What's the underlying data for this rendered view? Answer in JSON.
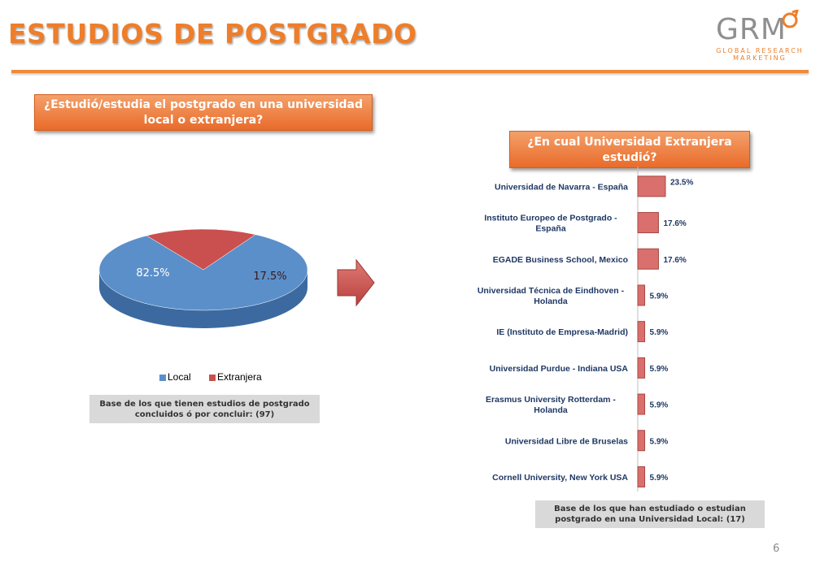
{
  "page": {
    "title": "ESTUDIOS DE POSTGRADO",
    "page_number": "6",
    "logo": {
      "mark": "GRM",
      "line1": "GLOBAL RESEARCH",
      "line2": "MARKETING"
    }
  },
  "left_panel": {
    "question": "¿Estudió/estudia el postgrado en una universidad local o extranjera?",
    "base_note": "Base de los que tienen estudios de postgrado concluidos ó por concluir: (97)"
  },
  "right_panel": {
    "question": "¿En cual Universidad Extranjera estudió?",
    "base_note": "Base de los que han estudiado o estudian postgrado en una Universidad Local: (17)"
  },
  "colors": {
    "accent": "#ee7e2a",
    "local": "#5b8fc9",
    "extranjera": "#c9504e",
    "bar": "#d9706d"
  },
  "chart_data": [
    {
      "type": "pie",
      "categories": [
        "Local",
        "Extranjera"
      ],
      "values": [
        82.5,
        17.5
      ],
      "labels": [
        "82.5%",
        "17.5%"
      ],
      "legend": "bottom",
      "style": "3d"
    },
    {
      "type": "bar",
      "orientation": "horizontal",
      "categories": [
        "Universidad de Navarra - España",
        "Instituto Europeo de Postgrado - España",
        "EGADE Business School, Mexico",
        "Universidad Técnica de Eindhoven - Holanda",
        "IE (Instituto de Empresa-Madrid)",
        "Universidad Purdue - Indiana USA",
        "Erasmus University Rotterdam - Holanda",
        "Universidad Libre de Bruselas",
        "Cornell University, New York USA"
      ],
      "values": [
        23.5,
        17.6,
        17.6,
        5.9,
        5.9,
        5.9,
        5.9,
        5.9,
        5.9
      ],
      "labels": [
        "23.5%",
        "17.6%",
        "17.6%",
        "5.9%",
        "5.9%",
        "5.9%",
        "5.9%",
        "5.9%",
        "5.9%"
      ],
      "grid": false
    }
  ]
}
